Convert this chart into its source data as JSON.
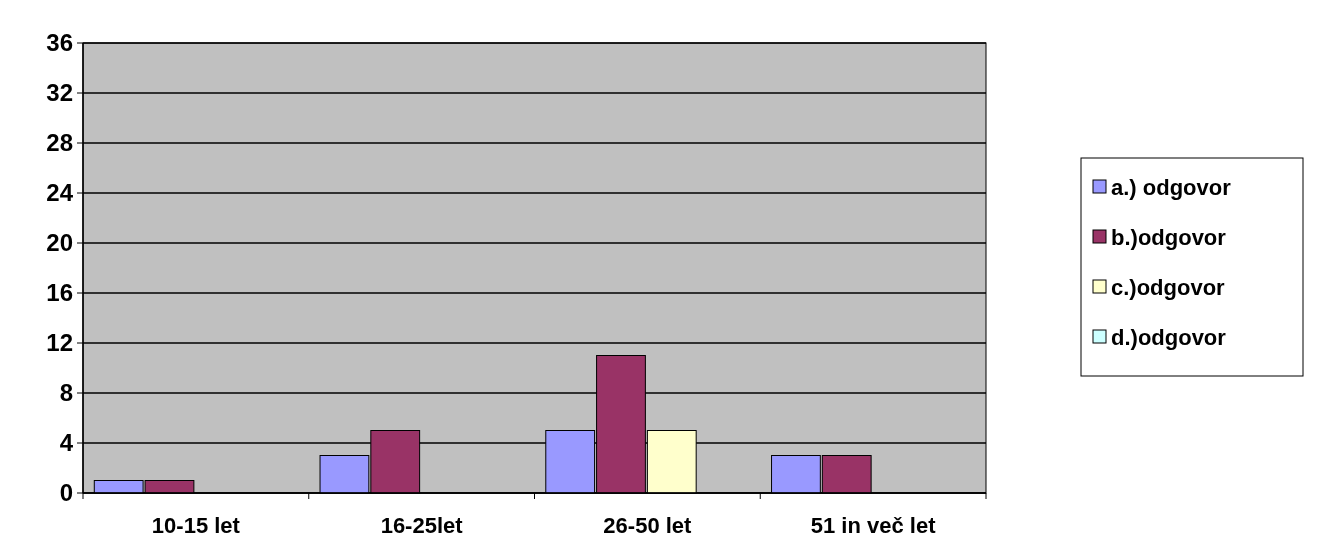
{
  "chart_data": {
    "type": "bar",
    "categories": [
      "10-15 let",
      "16-25let",
      "26-50 let",
      "51 in več let"
    ],
    "series": [
      {
        "name": "a.) odgovor",
        "color": "#9999ff",
        "values": [
          1,
          3,
          5,
          3
        ]
      },
      {
        "name": "b.)odgovor",
        "color": "#993366",
        "values": [
          1,
          5,
          11,
          3
        ]
      },
      {
        "name": "c.)odgovor",
        "color": "#ffffcc",
        "values": [
          0,
          0,
          5,
          0
        ]
      },
      {
        "name": "d.)odgovor",
        "color": "#ccffff",
        "values": [
          0,
          0,
          0,
          0
        ]
      }
    ],
    "ylim": [
      0,
      36
    ],
    "yticks": [
      0,
      4,
      8,
      12,
      16,
      20,
      24,
      28,
      32,
      36
    ],
    "grid": "y",
    "legend": "right"
  }
}
